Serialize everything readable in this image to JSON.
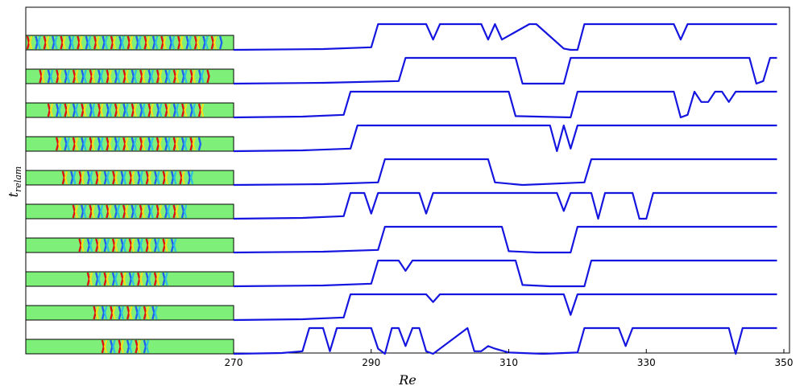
{
  "chart_data": {
    "type": "line",
    "title": "",
    "xlabel": "Re",
    "ylabel": "t_relam",
    "ylabel_base": "t",
    "ylabel_sub": "relam",
    "xlim": [
      270,
      350
    ],
    "xticks": [
      270,
      290,
      310,
      330,
      350
    ],
    "grid": false,
    "legend": "none",
    "line_color": "#1515e0",
    "inset_colors": {
      "background": "#7ef07a",
      "stripes": [
        "#e01010",
        "#2060f0",
        "#f0e020",
        "#30c0e0"
      ]
    },
    "series": [
      {
        "x": [
          270,
          283,
          290,
          291,
          298,
          299,
          300,
          306,
          307,
          308,
          309,
          313,
          314,
          318,
          319,
          320,
          321,
          334,
          335,
          336,
          349
        ],
        "y": [
          0,
          0.03,
          0.1,
          1,
          1,
          0.4,
          1,
          1,
          0.4,
          1,
          0.4,
          1,
          1,
          0.05,
          0,
          0,
          1,
          1,
          0.4,
          1,
          1
        ]
      },
      {
        "x": [
          270,
          283,
          294,
          295,
          311,
          312,
          318,
          319,
          345,
          346,
          347,
          348,
          349
        ],
        "y": [
          0,
          0.03,
          0.1,
          1,
          1,
          0,
          0,
          1,
          1,
          0,
          0.1,
          1,
          1
        ]
      },
      {
        "x": [
          270,
          280,
          286,
          287,
          310,
          311,
          319,
          320,
          334,
          335,
          336,
          337,
          338,
          339,
          340,
          341,
          342,
          343,
          349
        ],
        "y": [
          0,
          0.03,
          0.1,
          1,
          1,
          0.05,
          0,
          1,
          1,
          0,
          0.1,
          1,
          0.6,
          0.6,
          1,
          1,
          0.6,
          1,
          1
        ]
      },
      {
        "x": [
          270,
          280,
          287,
          288,
          316,
          317,
          318,
          319,
          320,
          349
        ],
        "y": [
          0,
          0.03,
          0.1,
          1,
          1,
          0,
          1,
          0.1,
          1,
          1
        ]
      },
      {
        "x": [
          270,
          283,
          291,
          292,
          307,
          308,
          312,
          321,
          322,
          349
        ],
        "y": [
          0,
          0.03,
          0.1,
          1,
          1,
          0.1,
          0,
          0.1,
          1,
          1
        ]
      },
      {
        "x": [
          270,
          280,
          286,
          287,
          289,
          290,
          291,
          297,
          298,
          299,
          317,
          318,
          319,
          322,
          323,
          324,
          328,
          329,
          330,
          331,
          349
        ],
        "y": [
          0,
          0.03,
          0.1,
          1,
          1,
          0.2,
          1,
          1,
          0.2,
          1,
          1,
          0.3,
          1,
          1,
          0,
          1,
          1,
          0,
          0,
          1,
          1
        ]
      },
      {
        "x": [
          270,
          283,
          291,
          292,
          309,
          310,
          314,
          319,
          320,
          349
        ],
        "y": [
          0,
          0.03,
          0.1,
          1,
          1,
          0.05,
          0,
          0,
          1,
          1
        ]
      },
      {
        "x": [
          270,
          283,
          290,
          291,
          294,
          295,
          296,
          311,
          312,
          316,
          321,
          322,
          349
        ],
        "y": [
          0,
          0.03,
          0.1,
          1,
          1,
          0.6,
          1,
          1,
          0.05,
          0,
          0,
          1,
          1
        ]
      },
      {
        "x": [
          270,
          280,
          286,
          287,
          289,
          290,
          298,
          299,
          300,
          318,
          319,
          320,
          349
        ],
        "y": [
          0,
          0.03,
          0.1,
          1,
          1,
          1,
          1,
          0.7,
          1,
          1,
          0.2,
          1,
          1
        ]
      },
      {
        "x": [
          270,
          277,
          280,
          281,
          283,
          284,
          285,
          290,
          291,
          292,
          293,
          294,
          295,
          296,
          297,
          298,
          299,
          304,
          305,
          306,
          307,
          308,
          310,
          315,
          320,
          321,
          326,
          327,
          328,
          342,
          343,
          344,
          349
        ],
        "y": [
          0,
          0.03,
          0.1,
          1,
          1,
          0.1,
          1,
          1,
          0.2,
          0,
          1,
          1,
          0.3,
          1,
          1,
          0.1,
          0,
          1,
          0.1,
          0.1,
          0.3,
          0.2,
          0.05,
          0,
          0.05,
          1,
          1,
          0.3,
          1,
          1,
          0,
          1,
          1
        ]
      }
    ],
    "insets": [
      {
        "start": 0.0,
        "end": 0.96
      },
      {
        "start": 0.06,
        "end": 0.9
      },
      {
        "start": 0.1,
        "end": 0.88
      },
      {
        "start": 0.14,
        "end": 0.85
      },
      {
        "start": 0.17,
        "end": 0.82
      },
      {
        "start": 0.22,
        "end": 0.78
      },
      {
        "start": 0.25,
        "end": 0.74
      },
      {
        "start": 0.29,
        "end": 0.7
      },
      {
        "start": 0.32,
        "end": 0.65
      },
      {
        "start": 0.36,
        "end": 0.61
      }
    ]
  }
}
